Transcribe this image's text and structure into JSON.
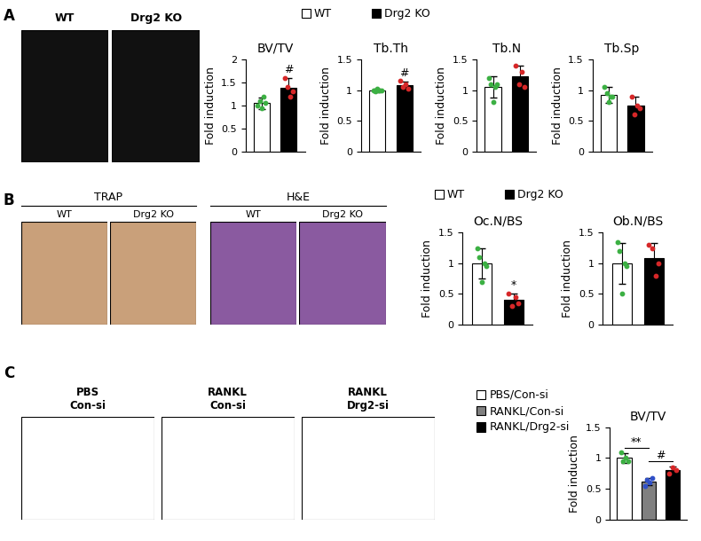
{
  "panels": {
    "A": {
      "letter": "A",
      "images": [
        "WT",
        "Drg2 KO"
      ],
      "legend": [
        {
          "name": "WT",
          "color": "#ffffff"
        },
        {
          "name": "Drg2 KO",
          "color": "#000000"
        }
      ]
    },
    "B": {
      "letter": "B",
      "image_groups": [
        {
          "title": "TRAP",
          "images": [
            "WT",
            "Drg2 KO"
          ]
        },
        {
          "title": "H&E",
          "images": [
            "WT",
            "Drg2 KO"
          ]
        }
      ],
      "legend": [
        {
          "name": "WT",
          "color": "#ffffff"
        },
        {
          "name": "Drg2 KO",
          "color": "#000000"
        }
      ]
    },
    "C": {
      "letter": "C",
      "images": [
        "PBS\nCon-si",
        "RANKL\nCon-si",
        "RANKL\nDrg2-si"
      ],
      "legend": [
        {
          "name": "PBS/Con-si",
          "color": "#ffffff"
        },
        {
          "name": "RANKL/Con-si",
          "color": "#808080"
        },
        {
          "name": "RANKL/Drg2-si",
          "color": "#000000"
        }
      ]
    }
  },
  "chart_data": [
    {
      "type": "bar",
      "title": "BV/TV",
      "y_label": "Fold induction",
      "categories": [
        null,
        null
      ],
      "values": [
        1.05,
        1.38
      ],
      "errors": [
        0.12,
        0.22
      ],
      "points": [
        [
          1.0,
          1.1,
          0.95,
          1.2,
          1.05
        ],
        [
          1.6,
          1.4,
          1.2,
          1.3
        ]
      ],
      "colors": [
        "#ffffff",
        "#000000"
      ],
      "ylim": [
        0,
        2
      ],
      "yticks": [
        0,
        0.5,
        1,
        1.5,
        2
      ],
      "tick_labels": "y",
      "annotations": [
        {
          "text": "#",
          "x": 1
        }
      ]
    },
    {
      "type": "bar",
      "title": "Tb.Th",
      "y_label": "Fold induction",
      "categories": [
        null,
        null
      ],
      "values": [
        1.0,
        1.08
      ],
      "errors": [
        0.03,
        0.06
      ],
      "points": [
        [
          1.0,
          0.98,
          1.02,
          1.0,
          0.99
        ],
        [
          1.15,
          1.05,
          1.1,
          1.03
        ]
      ],
      "colors": [
        "#ffffff",
        "#000000"
      ],
      "ylim": [
        0,
        1.5
      ],
      "yticks": [
        0,
        0.5,
        1,
        1.5
      ],
      "tick_labels": "y",
      "annotations": [
        {
          "text": "#",
          "x": 1
        }
      ]
    },
    {
      "type": "bar",
      "title": "Tb.N",
      "y_label": "Fold induction",
      "categories": [
        null,
        null
      ],
      "values": [
        1.05,
        1.22
      ],
      "errors": [
        0.17,
        0.18
      ],
      "points": [
        [
          1.2,
          1.1,
          0.8,
          1.05,
          1.1
        ],
        [
          1.4,
          1.1,
          1.3,
          1.05
        ]
      ],
      "colors": [
        "#ffffff",
        "#000000"
      ],
      "ylim": [
        0,
        1.5
      ],
      "yticks": [
        0,
        0.5,
        1,
        1.5
      ],
      "tick_labels": "y",
      "annotations": []
    },
    {
      "type": "bar",
      "title": "Tb.Sp",
      "y_label": "Fold induction",
      "categories": [
        null,
        null
      ],
      "values": [
        0.92,
        0.75
      ],
      "errors": [
        0.13,
        0.15
      ],
      "points": [
        [
          1.05,
          0.95,
          0.8,
          0.9,
          0.9
        ],
        [
          0.9,
          0.6,
          0.75,
          0.7
        ]
      ],
      "colors": [
        "#ffffff",
        "#000000"
      ],
      "ylim": [
        0,
        1.5
      ],
      "yticks": [
        0,
        0.5,
        1,
        1.5
      ],
      "tick_labels": "y",
      "annotations": []
    },
    {
      "type": "bar",
      "title": "Oc.N/BS",
      "y_label": "Fold induction",
      "categories": [
        null,
        null
      ],
      "values": [
        1.0,
        0.4
      ],
      "errors": [
        0.25,
        0.1
      ],
      "points": [
        [
          1.25,
          1.1,
          0.7,
          1.0,
          0.95
        ],
        [
          0.5,
          0.3,
          0.45,
          0.35
        ]
      ],
      "colors": [
        "#ffffff",
        "#000000"
      ],
      "ylim": [
        0,
        1.5
      ],
      "yticks": [
        0,
        0.5,
        1,
        1.5
      ],
      "tick_labels": "y",
      "annotations": [
        {
          "text": "*",
          "x": 1
        }
      ]
    },
    {
      "type": "bar",
      "title": "Ob.N/BS",
      "y_label": "Fold induction",
      "categories": [
        null,
        null
      ],
      "values": [
        1.0,
        1.08
      ],
      "errors": [
        0.33,
        0.25
      ],
      "points": [
        [
          1.35,
          1.2,
          0.5,
          1.0,
          0.95
        ],
        [
          1.3,
          1.25,
          0.8,
          1.0
        ]
      ],
      "colors": [
        "#ffffff",
        "#000000"
      ],
      "ylim": [
        0,
        1.5
      ],
      "yticks": [
        0,
        0.5,
        1,
        1.5
      ],
      "tick_labels": "y",
      "annotations": []
    },
    {
      "type": "bar",
      "title": "BV/TV",
      "y_label": "Fold induction",
      "categories": [
        null,
        null,
        null
      ],
      "values": [
        1.0,
        0.62,
        0.8
      ],
      "errors": [
        0.08,
        0.06,
        0.06
      ],
      "points": [
        [
          1.1,
          0.95,
          1.0,
          0.95
        ],
        [
          0.55,
          0.65,
          0.6,
          0.68
        ],
        [
          0.75,
          0.85,
          0.8
        ]
      ],
      "colors": [
        "#ffffff",
        "#808080",
        "#000000"
      ],
      "ylim": [
        0,
        1.5
      ],
      "yticks": [
        0,
        0.5,
        1,
        1.5
      ],
      "tick_labels": "y",
      "annotations": [
        {
          "text": "**",
          "from": 0,
          "to": 1
        },
        {
          "text": "#",
          "from": 1,
          "to": 2
        }
      ]
    }
  ]
}
